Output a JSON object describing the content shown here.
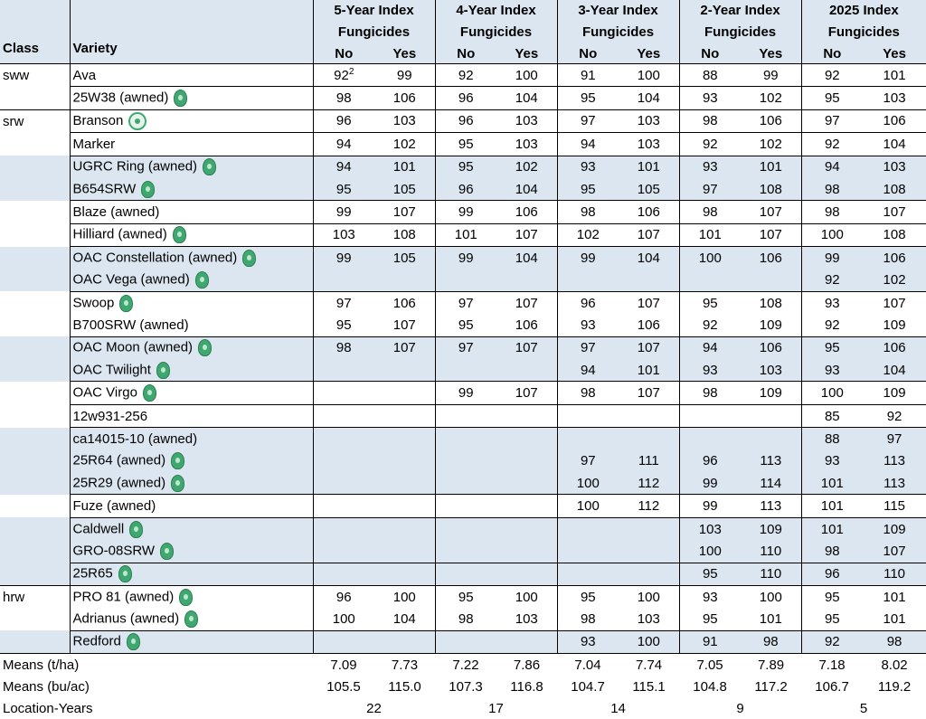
{
  "header": {
    "class_label": "Class",
    "variety_label": "Variety",
    "groups": [
      {
        "line1": "5-Year Index",
        "line2": "Fungicides"
      },
      {
        "line1": "4-Year Index",
        "line2": "Fungicides"
      },
      {
        "line1": "3-Year Index",
        "line2": "Fungicides"
      },
      {
        "line1": "2-Year Index",
        "line2": "Fungicides"
      },
      {
        "line1": "2025 Index",
        "line2": "Fungicides"
      }
    ],
    "no_label": "No",
    "yes_label": "Yes"
  },
  "rows": [
    {
      "cls": "sww",
      "variety": "Ava",
      "seal": "none",
      "v5n": "92",
      "v5n_sup": "2",
      "v5y": "99",
      "v4n": "92",
      "v4y": "100",
      "v3n": "91",
      "v3y": "100",
      "v2n": "88",
      "v2y": "99",
      "v1n": "92",
      "v1y": "101"
    },
    {
      "cls": "",
      "variety": "25W38 (awned)",
      "seal": "oval",
      "v5n": "98",
      "v5y": "106",
      "v4n": "96",
      "v4y": "104",
      "v3n": "95",
      "v3y": "104",
      "v2n": "93",
      "v2y": "102",
      "v1n": "95",
      "v1y": "103"
    },
    {
      "cls": "srw",
      "variety": "Branson",
      "seal": "round",
      "v5n": "96",
      "v5y": "103",
      "v4n": "96",
      "v4y": "103",
      "v3n": "97",
      "v3y": "103",
      "v2n": "98",
      "v2y": "106",
      "v1n": "97",
      "v1y": "106"
    },
    {
      "cls": "",
      "variety": "Marker",
      "seal": "none",
      "v5n": "94",
      "v5y": "102",
      "v4n": "95",
      "v4y": "103",
      "v3n": "94",
      "v3y": "103",
      "v2n": "92",
      "v2y": "102",
      "v1n": "92",
      "v1y": "104"
    },
    {
      "cls": "",
      "variety": "UGRC Ring (awned)",
      "seal": "oval",
      "v5n": "94",
      "v5y": "101",
      "v4n": "95",
      "v4y": "102",
      "v3n": "93",
      "v3y": "101",
      "v2n": "93",
      "v2y": "101",
      "v1n": "94",
      "v1y": "103"
    },
    {
      "cls": "",
      "variety": "B654SRW",
      "seal": "oval",
      "v5n": "95",
      "v5y": "105",
      "v4n": "96",
      "v4y": "104",
      "v3n": "95",
      "v3y": "105",
      "v2n": "97",
      "v2y": "108",
      "v1n": "98",
      "v1y": "108"
    },
    {
      "cls": "",
      "variety": "Blaze (awned)",
      "seal": "none",
      "v5n": "99",
      "v5y": "107",
      "v4n": "99",
      "v4y": "106",
      "v3n": "98",
      "v3y": "106",
      "v2n": "98",
      "v2y": "107",
      "v1n": "98",
      "v1y": "107"
    },
    {
      "cls": "",
      "variety": "Hilliard (awned)",
      "seal": "oval",
      "v5n": "103",
      "v5y": "108",
      "v4n": "101",
      "v4y": "107",
      "v3n": "102",
      "v3y": "107",
      "v2n": "101",
      "v2y": "107",
      "v1n": "100",
      "v1y": "108"
    },
    {
      "cls": "",
      "variety": "OAC Constellation (awned)",
      "seal": "oval",
      "v5n": "99",
      "v5y": "105",
      "v4n": "99",
      "v4y": "104",
      "v3n": "99",
      "v3y": "104",
      "v2n": "100",
      "v2y": "106",
      "v1n": "99",
      "v1y": "106"
    },
    {
      "cls": "",
      "variety": "OAC Vega (awned)",
      "seal": "oval",
      "v5n": "",
      "v5y": "",
      "v4n": "",
      "v4y": "",
      "v3n": "",
      "v3y": "",
      "v2n": "",
      "v2y": "",
      "v1n": "92",
      "v1y": "102"
    },
    {
      "cls": "",
      "variety": "Swoop",
      "seal": "oval",
      "v5n": "97",
      "v5y": "106",
      "v4n": "97",
      "v4y": "107",
      "v3n": "96",
      "v3y": "107",
      "v2n": "95",
      "v2y": "108",
      "v1n": "93",
      "v1y": "107"
    },
    {
      "cls": "",
      "variety": "B700SRW (awned)",
      "seal": "none",
      "v5n": "95",
      "v5y": "107",
      "v4n": "95",
      "v4y": "106",
      "v3n": "93",
      "v3y": "106",
      "v2n": "92",
      "v2y": "109",
      "v1n": "92",
      "v1y": "109"
    },
    {
      "cls": "",
      "variety": "OAC Moon (awned)",
      "seal": "oval",
      "v5n": "98",
      "v5y": "107",
      "v4n": "97",
      "v4y": "107",
      "v3n": "97",
      "v3y": "107",
      "v2n": "94",
      "v2y": "106",
      "v1n": "95",
      "v1y": "106"
    },
    {
      "cls": "",
      "variety": "OAC Twilight",
      "seal": "oval",
      "v5n": "",
      "v5y": "",
      "v4n": "",
      "v4y": "",
      "v3n": "94",
      "v3y": "101",
      "v2n": "93",
      "v2y": "103",
      "v1n": "93",
      "v1y": "104"
    },
    {
      "cls": "",
      "variety": "OAC Virgo",
      "seal": "oval",
      "v5n": "",
      "v5y": "",
      "v4n": "99",
      "v4y": "107",
      "v3n": "98",
      "v3y": "107",
      "v2n": "98",
      "v2y": "109",
      "v1n": "100",
      "v1y": "109"
    },
    {
      "cls": "",
      "variety": "12w931-256",
      "seal": "none",
      "v5n": "",
      "v5y": "",
      "v4n": "",
      "v4y": "",
      "v3n": "",
      "v3y": "",
      "v2n": "",
      "v2y": "",
      "v1n": "85",
      "v1y": "92"
    },
    {
      "cls": "",
      "variety": "ca14015-10 (awned)",
      "seal": "none",
      "v5n": "",
      "v5y": "",
      "v4n": "",
      "v4y": "",
      "v3n": "",
      "v3y": "",
      "v2n": "",
      "v2y": "",
      "v1n": "88",
      "v1y": "97"
    },
    {
      "cls": "",
      "variety": "25R64 (awned)",
      "seal": "oval",
      "v5n": "",
      "v5y": "",
      "v4n": "",
      "v4y": "",
      "v3n": "97",
      "v3y": "111",
      "v2n": "96",
      "v2y": "113",
      "v1n": "93",
      "v1y": "113"
    },
    {
      "cls": "",
      "variety": "25R29 (awned)",
      "seal": "oval",
      "v5n": "",
      "v5y": "",
      "v4n": "",
      "v4y": "",
      "v3n": "100",
      "v3y": "112",
      "v2n": "99",
      "v2y": "114",
      "v1n": "101",
      "v1y": "113"
    },
    {
      "cls": "",
      "variety": "Fuze (awned)",
      "seal": "none",
      "v5n": "",
      "v5y": "",
      "v4n": "",
      "v4y": "",
      "v3n": "100",
      "v3y": "112",
      "v2n": "99",
      "v2y": "113",
      "v1n": "101",
      "v1y": "115"
    },
    {
      "cls": "",
      "variety": "Caldwell",
      "seal": "oval",
      "v5n": "",
      "v5y": "",
      "v4n": "",
      "v4y": "",
      "v3n": "",
      "v3y": "",
      "v2n": "103",
      "v2y": "109",
      "v1n": "101",
      "v1y": "109"
    },
    {
      "cls": "",
      "variety": "GRO-08SRW",
      "seal": "oval",
      "v5n": "",
      "v5y": "",
      "v4n": "",
      "v4y": "",
      "v3n": "",
      "v3y": "",
      "v2n": "100",
      "v2y": "110",
      "v1n": "98",
      "v1y": "107"
    },
    {
      "cls": "",
      "variety": "25R65",
      "seal": "oval",
      "v5n": "",
      "v5y": "",
      "v4n": "",
      "v4y": "",
      "v3n": "",
      "v3y": "",
      "v2n": "95",
      "v2y": "110",
      "v1n": "96",
      "v1y": "110"
    },
    {
      "cls": "hrw",
      "variety": "PRO 81 (awned)",
      "seal": "oval",
      "v5n": "96",
      "v5y": "100",
      "v4n": "95",
      "v4y": "100",
      "v3n": "95",
      "v3y": "100",
      "v2n": "93",
      "v2y": "100",
      "v1n": "95",
      "v1y": "101"
    },
    {
      "cls": "",
      "variety": "Adrianus (awned)",
      "seal": "oval",
      "v5n": "100",
      "v5y": "104",
      "v4n": "98",
      "v4y": "103",
      "v3n": "98",
      "v3y": "103",
      "v2n": "95",
      "v2y": "101",
      "v1n": "95",
      "v1y": "101"
    },
    {
      "cls": "",
      "variety": "Redford",
      "seal": "oval",
      "v5n": "",
      "v5y": "",
      "v4n": "",
      "v4y": "",
      "v3n": "93",
      "v3y": "100",
      "v2n": "91",
      "v2y": "98",
      "v1n": "92",
      "v1y": "98"
    }
  ],
  "footer": {
    "means_tha": {
      "label": "Means (t/ha)",
      "values": [
        "7.09",
        "7.73",
        "7.22",
        "7.86",
        "7.04",
        "7.74",
        "7.05",
        "7.89",
        "7.18",
        "8.02"
      ]
    },
    "means_buac": {
      "label": "Means (bu/ac)",
      "values": [
        "105.5",
        "115.0",
        "107.3",
        "116.8",
        "104.7",
        "115.1",
        "104.8",
        "117.2",
        "106.7",
        "119.2"
      ]
    },
    "location_years": {
      "label": "Location-Years",
      "values": [
        "22",
        "17",
        "14",
        "9",
        "5"
      ]
    }
  },
  "colors": {
    "shade": "#dce6f1",
    "seal": "#3fa870"
  }
}
